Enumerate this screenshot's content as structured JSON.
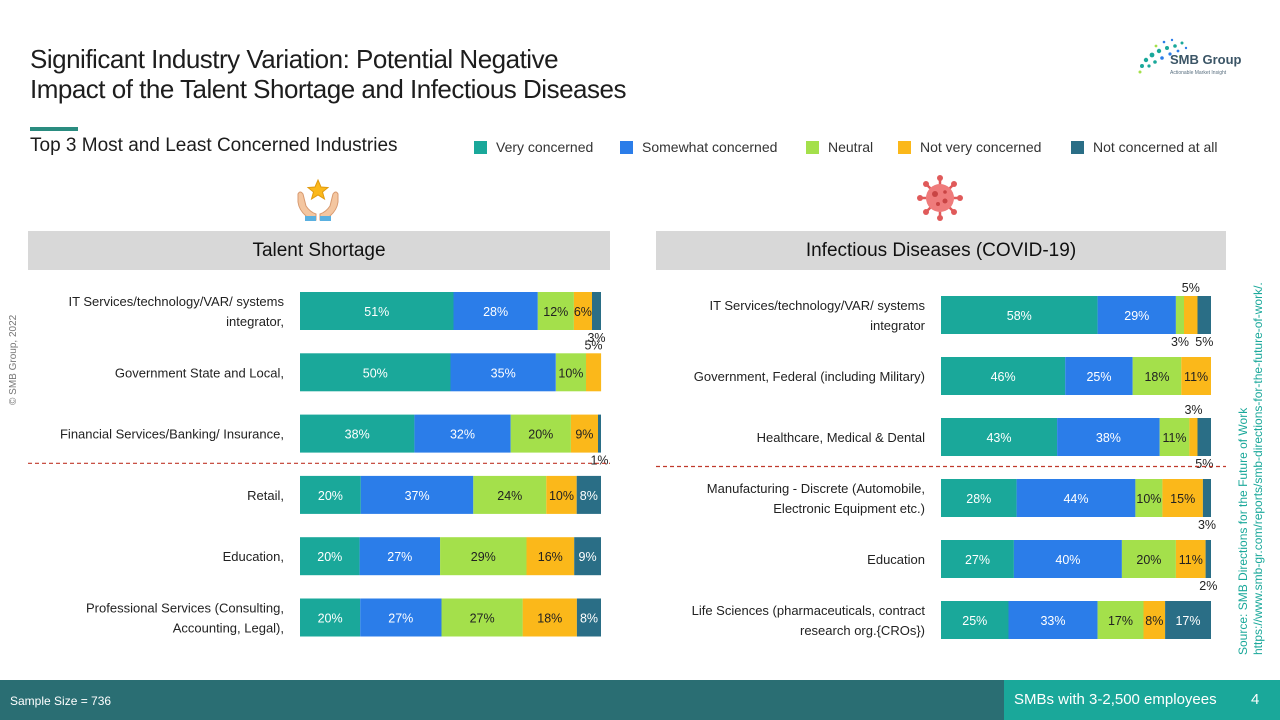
{
  "header": {
    "title_line1": "Significant Industry Variation: Potential Negative",
    "title_line2": "Impact of the Talent Shortage and Infectious Diseases",
    "subtitle": "Top 3 Most and Least Concerned Industries",
    "logo_text": "SMB Group",
    "logo_tagline": "Actionable Market Insight"
  },
  "legend": [
    {
      "label": "Very concerned",
      "color": "#1aa89a"
    },
    {
      "label": "Somewhat concerned",
      "color": "#2b7de9"
    },
    {
      "label": "Neutral",
      "color": "#a4e04b"
    },
    {
      "label": "Not very concerned",
      "color": "#fbb81a"
    },
    {
      "label": "Not concerned at all",
      "color": "#2a6e86"
    }
  ],
  "side": {
    "copyright": "© SMB Group, 2022",
    "source_line1": "Source: SMB Directions for the Future of Work",
    "source_line2": "https://www.smb-gr.com/reports/smb-directions-for-the-future-of-work/."
  },
  "footer": {
    "sample_size": "Sample Size = 736",
    "population": "SMBs with 3-2,500 employees",
    "page": "4"
  },
  "icons": {
    "left": "hands-star-icon",
    "right": "virus-icon"
  },
  "chart_data": [
    {
      "type": "bar",
      "orientation": "horizontal-stacked-100",
      "title": "Talent Shortage",
      "series_names": [
        "Very concerned",
        "Somewhat concerned",
        "Neutral",
        "Not very concerned",
        "Not concerned at all"
      ],
      "rows": [
        {
          "label": [
            "IT Services/technology/VAR/ systems",
            "integrator,"
          ],
          "values": [
            51,
            28,
            12,
            6,
            3
          ],
          "labels": [
            "51%",
            "28%",
            "12%",
            "6%",
            "3%"
          ]
        },
        {
          "label": [
            "Government State and Local,"
          ],
          "values": [
            50,
            35,
            10,
            5,
            0
          ],
          "labels": [
            "50%",
            "35%",
            "10%",
            "5%",
            ""
          ]
        },
        {
          "label": [
            "Financial Services/Banking/ Insurance,"
          ],
          "values": [
            38,
            32,
            20,
            9,
            1
          ],
          "labels": [
            "38%",
            "32%",
            "20%",
            "9%",
            "1%"
          ]
        },
        {
          "label": [
            "Retail,"
          ],
          "values": [
            20,
            37,
            24,
            10,
            8
          ],
          "labels": [
            "20%",
            "37%",
            "24%",
            "10%",
            "8%"
          ]
        },
        {
          "label": [
            "Education,"
          ],
          "values": [
            20,
            27,
            29,
            16,
            9
          ],
          "labels": [
            "20%",
            "27%",
            "29%",
            "16%",
            "9%"
          ]
        },
        {
          "label": [
            "Professional Services (Consulting,",
            "Accounting, Legal),"
          ],
          "values": [
            20,
            27,
            27,
            18,
            8
          ],
          "labels": [
            "20%",
            "27%",
            "27%",
            "18%",
            "8%"
          ]
        }
      ],
      "divider_after_row": 3
    },
    {
      "type": "bar",
      "orientation": "horizontal-stacked-100",
      "title": "Infectious Diseases (COVID-19)",
      "series_names": [
        "Very concerned",
        "Somewhat concerned",
        "Neutral",
        "Not very concerned",
        "Not concerned at all"
      ],
      "rows": [
        {
          "label": [
            "IT Services/technology/VAR/ systems",
            "integrator"
          ],
          "values": [
            58,
            29,
            3,
            5,
            5
          ],
          "labels": [
            "58%",
            "29%",
            "3%",
            "5%",
            "5%"
          ]
        },
        {
          "label": [
            "Government, Federal (including Military)"
          ],
          "values": [
            46,
            25,
            18,
            11,
            0
          ],
          "labels": [
            "46%",
            "25%",
            "18%",
            "11%",
            ""
          ]
        },
        {
          "label": [
            "Healthcare, Medical & Dental"
          ],
          "values": [
            43,
            38,
            11,
            3,
            5
          ],
          "labels": [
            "43%",
            "38%",
            "11%",
            "3%",
            "5%"
          ]
        },
        {
          "label": [
            "Manufacturing - Discrete (Automobile,",
            "Electronic Equipment etc.)"
          ],
          "values": [
            28,
            44,
            10,
            15,
            3
          ],
          "labels": [
            "28%",
            "44%",
            "10%",
            "15%",
            "3%"
          ]
        },
        {
          "label": [
            "Education"
          ],
          "values": [
            27,
            40,
            20,
            11,
            2
          ],
          "labels": [
            "27%",
            "40%",
            "20%",
            "11%",
            "2%"
          ]
        },
        {
          "label": [
            "Life Sciences (pharmaceuticals, contract",
            "research org.{CROs})"
          ],
          "values": [
            25,
            33,
            17,
            8,
            17
          ],
          "labels": [
            "25%",
            "33%",
            "17%",
            "8%",
            "17%"
          ]
        }
      ],
      "divider_after_row": 3
    }
  ]
}
